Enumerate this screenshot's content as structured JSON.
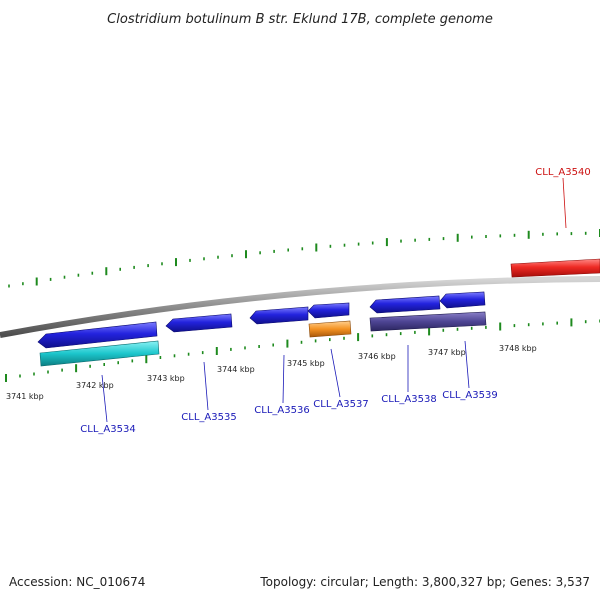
{
  "title": "Clostridium botulinum B str. Eklund 17B, complete genome",
  "footer": {
    "accession": "Accession: NC_010674",
    "topology": "Topology: circular; Length: 3,800,327 bp; Genes: 3,537"
  },
  "colors": {
    "backbone": "#8a8a8a",
    "tick": "#1e8a1e",
    "forward_gene": "#e8211c",
    "reverse_gene": "#2222d8",
    "cyan_gene": "#18c2c8",
    "orange_gene": "#f4901c",
    "purple_gene": "#4c4290",
    "label_blue": "#1a1ab8",
    "label_red": "#cc1111"
  },
  "scale": {
    "tick_labels": [
      "3741 kbp",
      "3742 kbp",
      "3743 kbp",
      "3744 kbp",
      "3745 kbp",
      "3746 kbp",
      "3747 kbp",
      "3748 kbp"
    ]
  },
  "genes": [
    {
      "id": "CLL_A3534",
      "color_key": "label_blue"
    },
    {
      "id": "CLL_A3535",
      "color_key": "label_blue"
    },
    {
      "id": "CLL_A3536",
      "color_key": "label_blue"
    },
    {
      "id": "CLL_A3537",
      "color_key": "label_blue"
    },
    {
      "id": "CLL_A3538",
      "color_key": "label_blue"
    },
    {
      "id": "CLL_A3539",
      "color_key": "label_blue"
    },
    {
      "id": "CLL_A3540",
      "color_key": "label_red"
    }
  ]
}
